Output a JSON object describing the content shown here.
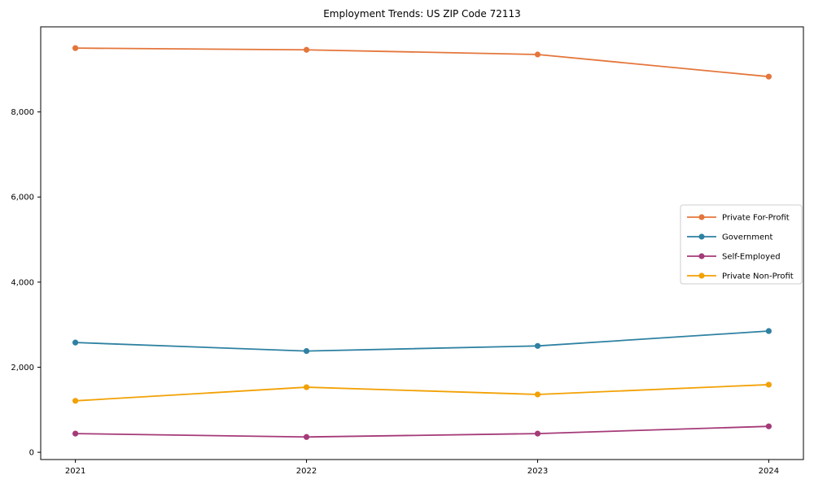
{
  "chart_data": {
    "type": "line",
    "title": "Employment Trends: US ZIP Code 72113",
    "xlabel": "",
    "ylabel": "",
    "x": [
      2021,
      2022,
      2023,
      2024
    ],
    "x_tick_labels": [
      "2021",
      "2022",
      "2023",
      "2024"
    ],
    "series": [
      {
        "name": "Private For-Profit",
        "color": "#e4763b",
        "values": [
          9500,
          9460,
          9350,
          8830
        ]
      },
      {
        "name": "Government",
        "color": "#2e81a2",
        "values": [
          2580,
          2380,
          2500,
          2850
        ]
      },
      {
        "name": "Self-Employed",
        "color": "#a53a78",
        "values": [
          440,
          360,
          440,
          610
        ]
      },
      {
        "name": "Private Non-Profit",
        "color": "#f2a104",
        "values": [
          1210,
          1530,
          1360,
          1590
        ]
      }
    ],
    "yticks": [
      {
        "value": 0,
        "label": "0"
      },
      {
        "value": 2000,
        "label": "2,000"
      },
      {
        "value": 4000,
        "label": "4,000"
      },
      {
        "value": 6000,
        "label": "6,000"
      },
      {
        "value": 8000,
        "label": "8,000"
      }
    ],
    "xlim": [
      2020.85,
      2024.15
    ],
    "ylim": [
      -170,
      10000
    ],
    "grid": false,
    "legend_position": "center-right",
    "axis_color": "#000000",
    "background_color": "#ffffff",
    "legend_border_color": "#cccccc"
  }
}
